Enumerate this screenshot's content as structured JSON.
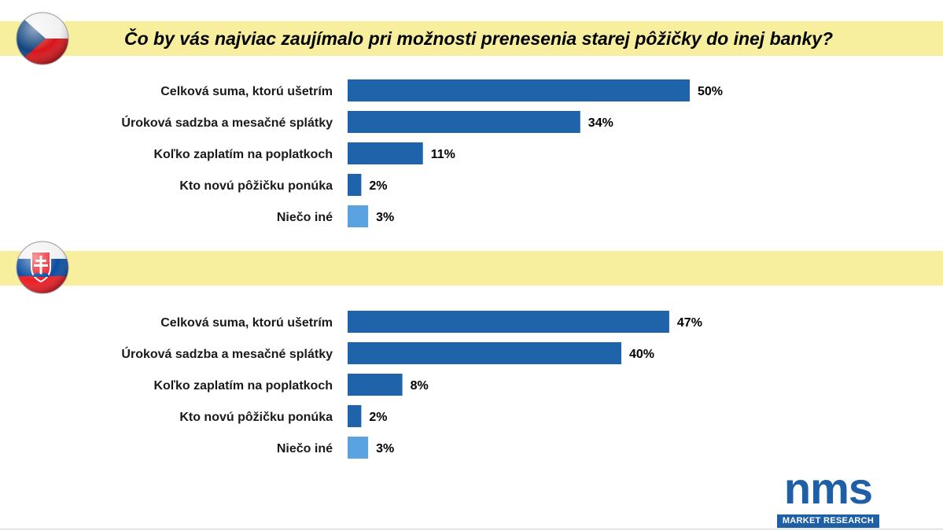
{
  "title": "Čo by vás najviac zaujímalo pri možnosti prenesenia starej pôžičky do inej banky?",
  "colors": {
    "band": "#f8ef9e",
    "bar_primary": "#1f63aa",
    "bar_other": "#5ba3e0"
  },
  "flags": {
    "cz": "czech-flag-icon",
    "sk": "slovak-flag-icon"
  },
  "logo": {
    "word": "nms",
    "tagline": "MARKET RESEARCH"
  },
  "chart_data": [
    {
      "type": "bar",
      "orientation": "horizontal",
      "categories": [
        "Celková suma, ktorú ušetrím",
        "Úroková sadzba a mesačné splátky",
        "Koľko zaplatím na poplatkoch",
        "Kto novú pôžičku ponúka",
        "Niečo iné"
      ],
      "values": [
        50,
        34,
        11,
        2,
        3
      ],
      "value_labels": [
        "50%",
        "34%",
        "11%",
        "2%",
        "3%"
      ],
      "xlim": [
        0,
        100
      ],
      "grid": false,
      "legend": "none"
    },
    {
      "type": "bar",
      "orientation": "horizontal",
      "categories": [
        "Celková suma, ktorú ušetrím",
        "Úroková sadzba a mesačné splátky",
        "Koľko zaplatím na poplatkoch",
        "Kto novú pôžičku ponúka",
        "Niečo iné"
      ],
      "values": [
        47,
        40,
        8,
        2,
        3
      ],
      "value_labels": [
        "47%",
        "40%",
        "8%",
        "2%",
        "3%"
      ],
      "xlim": [
        0,
        100
      ],
      "grid": false,
      "legend": "none"
    }
  ]
}
